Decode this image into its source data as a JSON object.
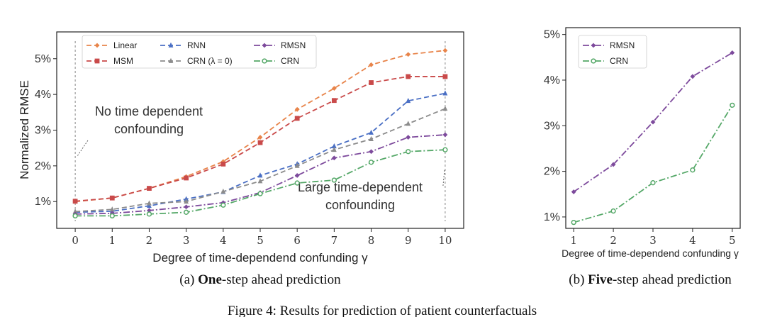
{
  "figure_caption": "Figure 4: Results for prediction of patient counterfactuals",
  "colors": {
    "Linear": "#e8844a",
    "MSM": "#c94a4a",
    "RNN": "#4a6fc4",
    "CRN (λ = 0)": "#8c8c8c",
    "RMSN": "#7d4a9c",
    "CRN": "#55a868"
  },
  "chart_data": [
    {
      "type": "line",
      "caption_prefix": "(a) ",
      "caption_bold": "One",
      "caption_rest": "-step ahead prediction",
      "xlabel": "Degree of time-dependend confunding γ",
      "ylabel": "Normalized RMSE",
      "x": [
        0,
        1,
        2,
        3,
        4,
        5,
        6,
        7,
        8,
        9,
        10
      ],
      "xlim": [
        -0.5,
        10.5
      ],
      "ylim": [
        0.25,
        5.75
      ],
      "yticks": [
        1,
        2,
        3,
        4,
        5
      ],
      "ytick_labels": [
        "1%",
        "2%",
        "3%",
        "4%",
        "5%"
      ],
      "grid": false,
      "legend": "top",
      "series": [
        {
          "name": "Linear",
          "marker": "diamond",
          "dash": "dashed",
          "values": [
            1.0,
            1.1,
            1.37,
            1.7,
            2.12,
            2.8,
            3.58,
            4.17,
            4.83,
            5.12,
            5.23
          ]
        },
        {
          "name": "MSM",
          "marker": "square",
          "dash": "dashed",
          "values": [
            1.01,
            1.1,
            1.37,
            1.66,
            2.05,
            2.65,
            3.33,
            3.83,
            4.33,
            4.5,
            4.5
          ]
        },
        {
          "name": "RNN",
          "marker": "triangle",
          "dash": "dashed",
          "values": [
            0.7,
            0.73,
            0.88,
            1.07,
            1.27,
            1.73,
            2.05,
            2.55,
            2.93,
            3.82,
            4.03
          ]
        },
        {
          "name": "CRN (λ = 0)",
          "marker": "triangle",
          "dash": "dashed",
          "values": [
            0.72,
            0.78,
            0.95,
            1.0,
            1.28,
            1.57,
            2.0,
            2.45,
            2.75,
            3.18,
            3.6
          ]
        },
        {
          "name": "RMSN",
          "marker": "diamond",
          "dash": "dashdot",
          "values": [
            0.65,
            0.67,
            0.75,
            0.85,
            0.97,
            1.25,
            1.73,
            2.22,
            2.4,
            2.8,
            2.87
          ]
        },
        {
          "name": "CRN",
          "marker": "circle",
          "dash": "dashdot",
          "values": [
            0.6,
            0.6,
            0.65,
            0.7,
            0.9,
            1.22,
            1.52,
            1.6,
            2.1,
            2.4,
            2.45
          ]
        }
      ],
      "annotations": [
        {
          "lines": [
            "No time dependent",
            "confounding"
          ],
          "x": 0
        },
        {
          "lines": [
            "Large time-dependent",
            "confounding"
          ],
          "x": 10
        }
      ]
    },
    {
      "type": "line",
      "caption_prefix": "(b) ",
      "caption_bold": "Five",
      "caption_rest": "-step ahead prediction",
      "xlabel": "Degree of time-dependend confunding γ",
      "ylabel": "",
      "x": [
        1,
        2,
        3,
        4,
        5
      ],
      "xlim": [
        0.8,
        5.2
      ],
      "ylim": [
        0.75,
        5.15
      ],
      "yticks": [
        1,
        2,
        3,
        4,
        5
      ],
      "ytick_labels": [
        "1%",
        "2%",
        "3%",
        "4%",
        "5%"
      ],
      "grid": false,
      "legend": "top-left",
      "series": [
        {
          "name": "RMSN",
          "marker": "diamond",
          "dash": "dashdot",
          "values": [
            1.55,
            2.15,
            3.08,
            4.08,
            4.6
          ]
        },
        {
          "name": "CRN",
          "marker": "circle",
          "dash": "dashdot",
          "values": [
            0.88,
            1.13,
            1.75,
            2.03,
            3.45
          ]
        }
      ]
    }
  ]
}
